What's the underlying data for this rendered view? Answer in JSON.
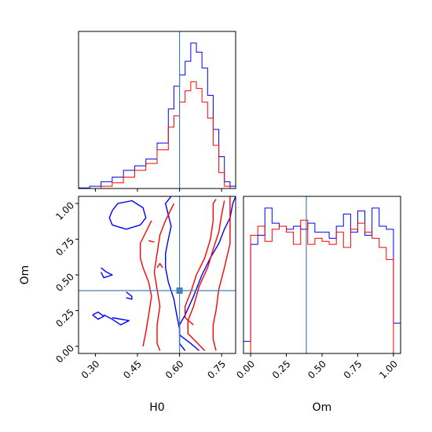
{
  "chart_data": {
    "type": "corner",
    "parameters": [
      "H0",
      "Om"
    ],
    "xlabel_bottom_left": "H0",
    "xlabel_bottom_right": "Om",
    "ylabel_left": "Om",
    "truth": {
      "H0": 0.6,
      "Om": 0.39
    },
    "truth_color": "#4682b4",
    "series": [
      {
        "color": "#0000ff"
      },
      {
        "color": "#ff0000"
      }
    ],
    "hist_H0": {
      "xlim": [
        0.24,
        0.8
      ],
      "edges": [
        0.24,
        0.28,
        0.32,
        0.36,
        0.4,
        0.44,
        0.48,
        0.52,
        0.56,
        0.58,
        0.6,
        0.62,
        0.64,
        0.66,
        0.68,
        0.7,
        0.72,
        0.74,
        0.76,
        0.78,
        0.8
      ],
      "blue": [
        0.5,
        2,
        6,
        10,
        16,
        20,
        26,
        40,
        70,
        90,
        100,
        112,
        128,
        120,
        106,
        82,
        52,
        28,
        6,
        2
      ],
      "red": [
        0,
        0,
        2,
        5,
        10,
        16,
        22,
        34,
        54,
        64,
        76,
        86,
        94,
        88,
        76,
        62,
        38,
        14,
        2,
        0
      ],
      "xticks": [
        0.3,
        0.45,
        0.6,
        0.75
      ]
    },
    "hist_Om": {
      "xlim": [
        -0.05,
        1.05
      ],
      "edges": [
        -0.05,
        0.0,
        0.05,
        0.1,
        0.15,
        0.2,
        0.25,
        0.3,
        0.35,
        0.4,
        0.45,
        0.5,
        0.55,
        0.6,
        0.65,
        0.7,
        0.75,
        0.8,
        0.85,
        0.9,
        0.95,
        1.0,
        1.05
      ],
      "blue": [
        8,
        72,
        78,
        96,
        86,
        84,
        82,
        84,
        82,
        86,
        80,
        80,
        76,
        84,
        92,
        80,
        94,
        78,
        96,
        84,
        82,
        20
      ],
      "red": [
        0,
        78,
        84,
        74,
        82,
        84,
        80,
        72,
        88,
        72,
        76,
        74,
        72,
        80,
        70,
        82,
        86,
        80,
        76,
        70,
        62,
        0
      ],
      "xticks": [
        0.0,
        0.25,
        0.5,
        0.75,
        1.0
      ],
      "xtick_labels": [
        "0.00",
        "0.25",
        "0.50",
        "0.75",
        "1.00"
      ]
    },
    "scatter_2d": {
      "xlim": [
        0.24,
        0.8
      ],
      "ylim": [
        -0.05,
        1.05
      ],
      "xticks": [
        0.3,
        0.45,
        0.6,
        0.75
      ],
      "xtick_labels": [
        "0.30",
        "0.45",
        "0.60",
        "0.75"
      ],
      "yticks": [
        0.0,
        0.25,
        0.5,
        0.75,
        1.0
      ],
      "ytick_labels": [
        "0.00",
        "0.25",
        "0.50",
        "0.75",
        "1.00"
      ],
      "contours": [
        {
          "series": 0,
          "points": [
            [
              0.67,
              -0.03
            ],
            [
              0.64,
              0.02
            ],
            [
              0.62,
              0.05
            ],
            [
              0.6,
              0.08
            ],
            [
              0.6,
              0.15
            ],
            [
              0.62,
              0.22
            ],
            [
              0.65,
              0.35
            ],
            [
              0.68,
              0.5
            ],
            [
              0.71,
              0.62
            ],
            [
              0.74,
              0.72
            ],
            [
              0.76,
              0.82
            ],
            [
              0.78,
              0.9
            ],
            [
              0.79,
              1.0
            ],
            [
              0.8,
              1.05
            ]
          ]
        },
        {
          "series": 0,
          "points": [
            [
              0.57,
              1.05
            ],
            [
              0.55,
              1.0
            ],
            [
              0.56,
              0.92
            ],
            [
              0.57,
              0.84
            ],
            [
              0.56,
              0.75
            ],
            [
              0.55,
              0.65
            ],
            [
              0.55,
              0.55
            ],
            [
              0.56,
              0.45
            ],
            [
              0.58,
              0.33
            ],
            [
              0.59,
              0.22
            ],
            [
              0.6,
              0.12
            ],
            [
              0.6,
              0.02
            ],
            [
              0.62,
              -0.03
            ]
          ]
        },
        {
          "series": 0,
          "points": [
            [
              0.36,
              0.95
            ],
            [
              0.38,
              1.0
            ],
            [
              0.43,
              1.02
            ],
            [
              0.47,
              0.97
            ],
            [
              0.48,
              0.9
            ],
            [
              0.46,
              0.85
            ],
            [
              0.41,
              0.82
            ],
            [
              0.36,
              0.85
            ],
            [
              0.35,
              0.9
            ],
            [
              0.36,
              0.95
            ]
          ]
        },
        {
          "series": 0,
          "points": [
            [
              0.32,
              0.55
            ],
            [
              0.34,
              0.52
            ],
            [
              0.36,
              0.5
            ],
            [
              0.33,
              0.48
            ],
            [
              0.32,
              0.52
            ]
          ]
        },
        {
          "series": 0,
          "points": [
            [
              0.33,
              0.22
            ],
            [
              0.36,
              0.19
            ],
            [
              0.39,
              0.15
            ],
            [
              0.42,
              0.18
            ],
            [
              0.36,
              0.2
            ]
          ]
        },
        {
          "series": 0,
          "points": [
            [
              0.29,
              0.22
            ],
            [
              0.31,
              0.19
            ],
            [
              0.33,
              0.21
            ],
            [
              0.31,
              0.24
            ],
            [
              0.29,
              0.22
            ]
          ]
        },
        {
          "series": 0,
          "points": [
            [
              0.41,
              0.38
            ],
            [
              0.43,
              0.35
            ],
            [
              0.43,
              0.33
            ],
            [
              0.41,
              0.34
            ]
          ]
        },
        {
          "series": 1,
          "points": [
            [
              0.69,
              -0.03
            ],
            [
              0.66,
              0.03
            ],
            [
              0.63,
              0.09
            ],
            [
              0.63,
              0.18
            ],
            [
              0.65,
              0.28
            ],
            [
              0.67,
              0.42
            ],
            [
              0.7,
              0.55
            ],
            [
              0.72,
              0.68
            ],
            [
              0.74,
              0.8
            ],
            [
              0.75,
              0.92
            ],
            [
              0.76,
              1.02
            ]
          ]
        },
        {
          "series": 1,
          "points": [
            [
              0.73,
              -0.03
            ],
            [
              0.72,
              0.05
            ],
            [
              0.72,
              0.15
            ],
            [
              0.73,
              0.25
            ],
            [
              0.74,
              0.4
            ],
            [
              0.76,
              0.55
            ],
            [
              0.78,
              0.72
            ],
            [
              0.78,
              0.88
            ],
            [
              0.78,
              1.05
            ]
          ]
        },
        {
          "series": 1,
          "points": [
            [
              0.58,
              1.0
            ],
            [
              0.55,
              0.88
            ],
            [
              0.53,
              0.78
            ],
            [
              0.52,
              0.65
            ],
            [
              0.51,
              0.52
            ],
            [
              0.52,
              0.4
            ],
            [
              0.53,
              0.28
            ],
            [
              0.52,
              0.15
            ],
            [
              0.52,
              0.02
            ],
            [
              0.53,
              -0.03
            ]
          ]
        },
        {
          "series": 1,
          "points": [
            [
              0.65,
              0.15
            ],
            [
              0.62,
              0.2
            ],
            [
              0.62,
              0.28
            ],
            [
              0.64,
              0.38
            ],
            [
              0.66,
              0.5
            ],
            [
              0.69,
              0.62
            ],
            [
              0.71,
              0.75
            ],
            [
              0.72,
              0.88
            ],
            [
              0.72,
              1.0
            ],
            [
              0.73,
              1.03
            ]
          ]
        },
        {
          "series": 1,
          "points": [
            [
              0.5,
              0.88
            ],
            [
              0.48,
              0.8
            ],
            [
              0.46,
              0.72
            ],
            [
              0.46,
              0.62
            ],
            [
              0.47,
              0.55
            ],
            [
              0.49,
              0.45
            ],
            [
              0.5,
              0.35
            ],
            [
              0.49,
              0.22
            ],
            [
              0.48,
              0.1
            ],
            [
              0.47,
              0.0
            ]
          ]
        },
        {
          "series": 1,
          "points": [
            [
              0.49,
              0.74
            ],
            [
              0.51,
              0.73
            ]
          ]
        },
        {
          "series": 1,
          "points": [
            [
              0.52,
              0.55
            ],
            [
              0.53,
              0.58
            ],
            [
              0.54,
              0.55
            ]
          ]
        }
      ]
    }
  }
}
